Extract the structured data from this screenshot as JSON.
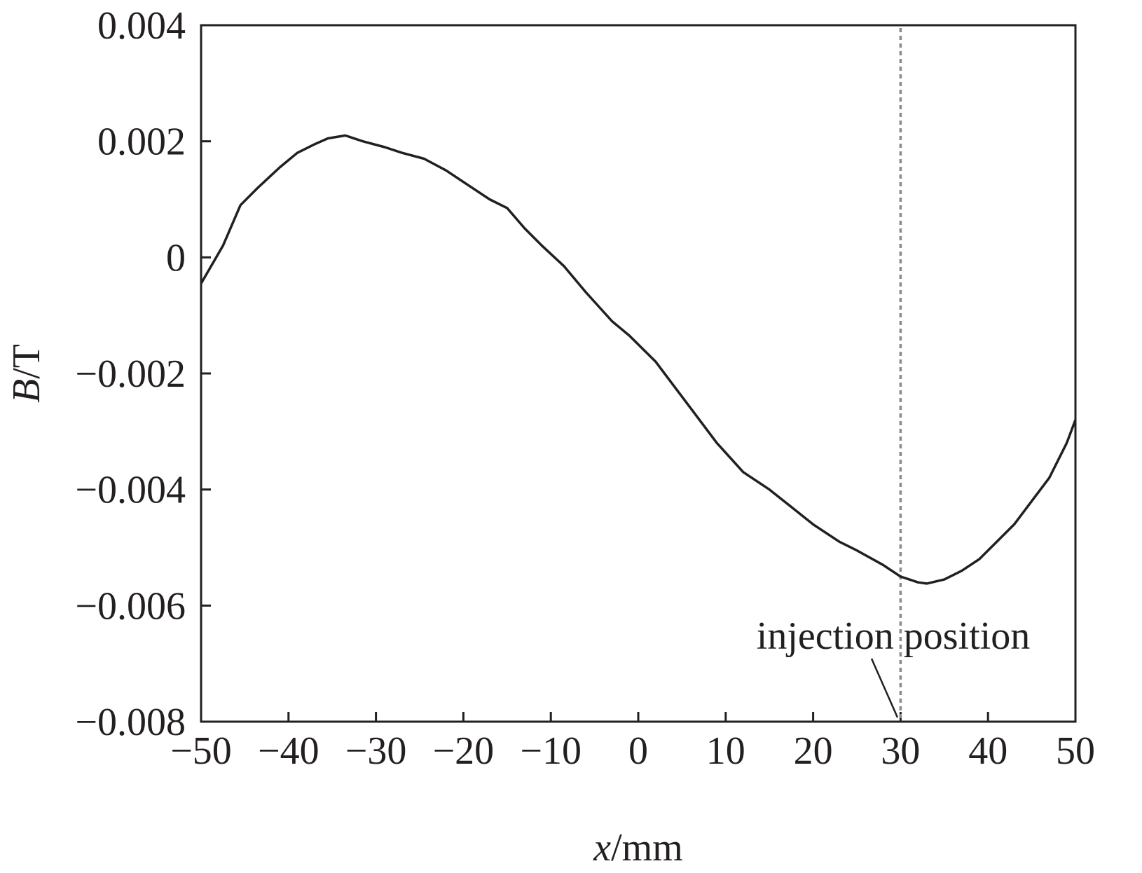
{
  "chart_data": {
    "type": "line",
    "title": "",
    "xlabel": {
      "var": "x",
      "unit": "/mm"
    },
    "ylabel": {
      "var": "B",
      "unit": "/T"
    },
    "xlim": [
      -50,
      50
    ],
    "ylim": [
      -0.008,
      0.004
    ],
    "x_ticks": [
      -50,
      -40,
      -30,
      -20,
      -10,
      0,
      10,
      20,
      30,
      40,
      50
    ],
    "x_tick_labels": [
      "−50",
      "−40",
      "−30",
      "−20",
      "−10",
      "0",
      "10",
      "20",
      "30",
      "40",
      "50"
    ],
    "y_ticks": [
      0.004,
      0.002,
      0,
      -0.002,
      -0.004,
      -0.006,
      -0.008
    ],
    "y_tick_labels": [
      "0.004",
      "0.002",
      "0",
      "−0.002",
      "−0.004",
      "−0.006",
      "−0.008"
    ],
    "grid": false,
    "line_color": "#231f20",
    "series": [
      {
        "x": [
          -50,
          -47.5,
          -45.5,
          -43.5,
          -41,
          -39,
          -37,
          -35.5,
          -33.5,
          -31.5,
          -29,
          -27,
          -24.5,
          -22,
          -19.5,
          -17,
          -15,
          -13,
          -11,
          -8.5,
          -6,
          -3,
          -1,
          0,
          2,
          4,
          6,
          9,
          12,
          15,
          17.5,
          20,
          23,
          25,
          28,
          30,
          32,
          33,
          35,
          37,
          39,
          41,
          43,
          45,
          47,
          49,
          50
        ],
        "y": [
          -0.00045,
          0.0002,
          0.0009,
          0.0012,
          0.00155,
          0.0018,
          0.00195,
          0.00205,
          0.0021,
          0.002,
          0.0019,
          0.0018,
          0.0017,
          0.0015,
          0.00125,
          0.001,
          0.00085,
          0.0005,
          0.0002,
          -0.00015,
          -0.0006,
          -0.0011,
          -0.00135,
          -0.0015,
          -0.0018,
          -0.0022,
          -0.0026,
          -0.0032,
          -0.0037,
          -0.004,
          -0.0043,
          -0.0046,
          -0.0049,
          -0.00505,
          -0.0053,
          -0.0055,
          -0.0056,
          -0.00562,
          -0.00555,
          -0.0054,
          -0.0052,
          -0.0049,
          -0.0046,
          -0.0042,
          -0.0038,
          -0.0032,
          -0.0028
        ]
      }
    ],
    "annotation": {
      "text": "injection position",
      "x": 30,
      "line_color": "#8a8a8a",
      "line_style": "dotted"
    }
  }
}
